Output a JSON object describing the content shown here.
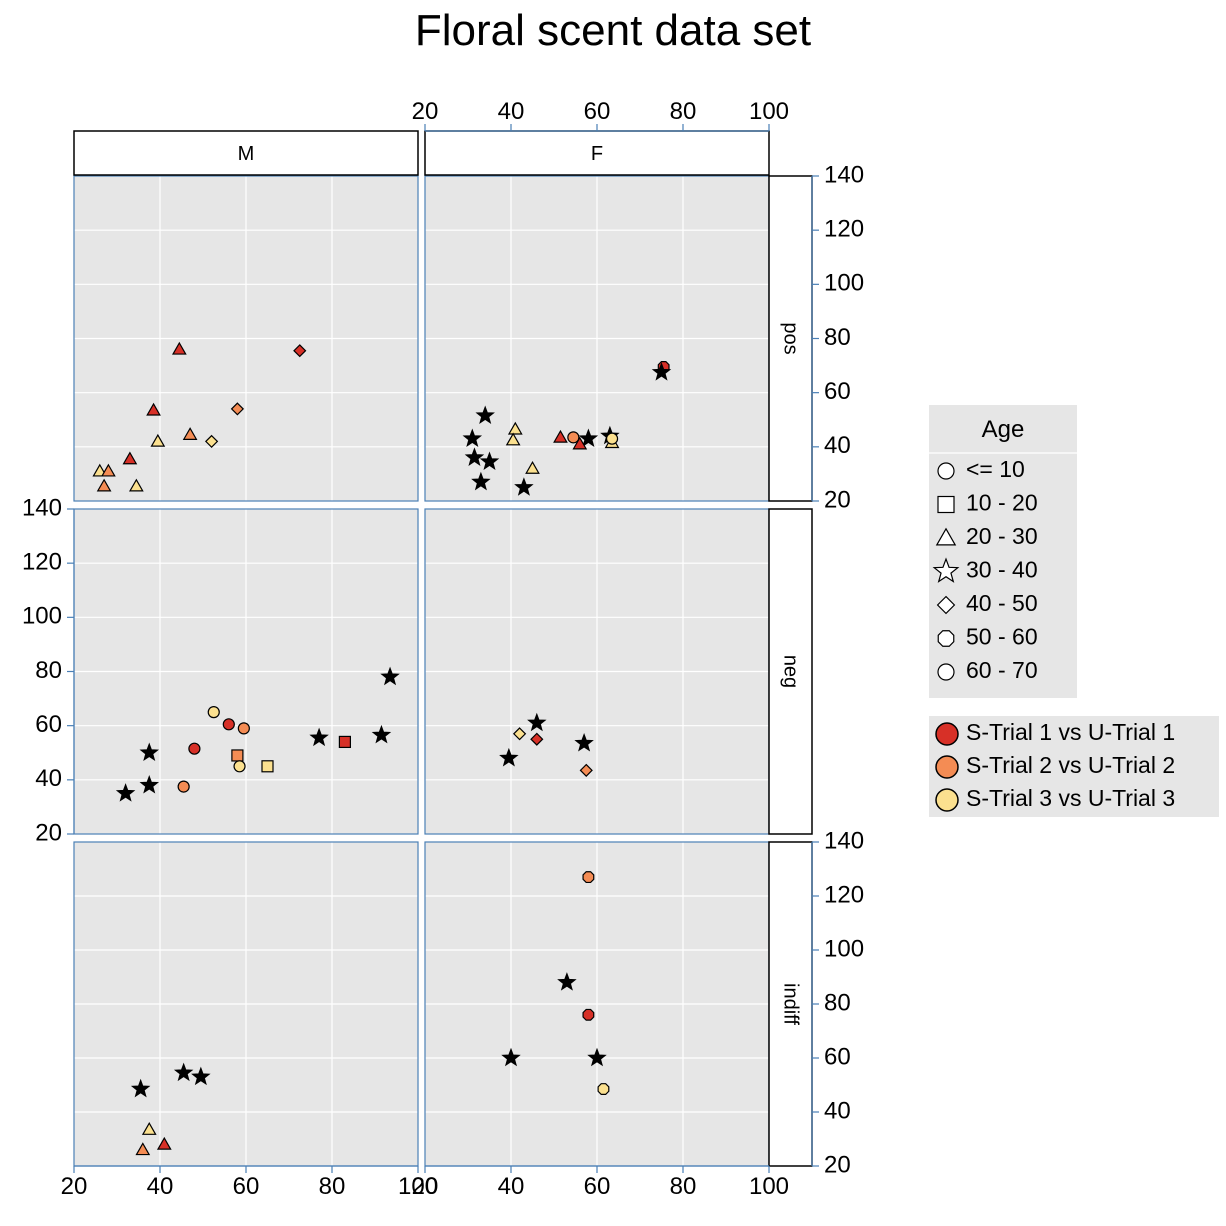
{
  "chart_data": {
    "type": "scatter",
    "title": "Floral scent data set",
    "xlim": [
      20,
      100
    ],
    "ylim": [
      20,
      140
    ],
    "x_ticks": [
      "20",
      "40",
      "60",
      "80",
      "100"
    ],
    "y_ticks": [
      "20",
      "40",
      "60",
      "80",
      "100",
      "120",
      "140"
    ],
    "columns": [
      "M",
      "F"
    ],
    "rows": [
      "pos",
      "neg",
      "indiff"
    ],
    "colors": {
      "S-Trial 1 vs U-Trial 1": "#d73027",
      "S-Trial 2 vs U-Trial 2": "#f48c54",
      "S-Trial 3 vs U-Trial 3": "#fbe08f"
    },
    "shape_legend": {
      "title": "Age",
      "items": [
        {
          "label": "<= 10",
          "shape": "circle"
        },
        {
          "label": "10 - 20",
          "shape": "square"
        },
        {
          "label": "20 - 30",
          "shape": "triangle"
        },
        {
          "label": "30 - 40",
          "shape": "star"
        },
        {
          "label": "40 - 50",
          "shape": "diamond"
        },
        {
          "label": "50 - 60",
          "shape": "octagon"
        },
        {
          "label": "60 - 70",
          "shape": "circle"
        }
      ]
    },
    "color_legend": {
      "items": [
        {
          "label": "S-Trial 1 vs U-Trial 1",
          "color": "#d73027"
        },
        {
          "label": "S-Trial 2 vs U-Trial 2",
          "color": "#f48c54"
        },
        {
          "label": "S-Trial 3 vs U-Trial 3",
          "color": "#fbe08f"
        }
      ]
    },
    "panels": [
      {
        "col": "M",
        "row": "pos",
        "points": [
          {
            "x": 44.5,
            "y": 76,
            "shape": "triangle",
            "color": "#d73027"
          },
          {
            "x": 72.5,
            "y": 75.5,
            "shape": "diamond",
            "color": "#d73027"
          },
          {
            "x": 38.5,
            "y": 53.5,
            "shape": "triangle",
            "color": "#d73027"
          },
          {
            "x": 58,
            "y": 54,
            "shape": "diamond",
            "color": "#f48c54"
          },
          {
            "x": 47,
            "y": 44.5,
            "shape": "triangle",
            "color": "#f48c54"
          },
          {
            "x": 39.5,
            "y": 42,
            "shape": "triangle",
            "color": "#fbe08f"
          },
          {
            "x": 52,
            "y": 42,
            "shape": "diamond",
            "color": "#fbe08f"
          },
          {
            "x": 33,
            "y": 35.5,
            "shape": "triangle",
            "color": "#d73027"
          },
          {
            "x": 26,
            "y": 31,
            "shape": "triangle",
            "color": "#fbe08f"
          },
          {
            "x": 28,
            "y": 31,
            "shape": "triangle",
            "color": "#f48c54"
          },
          {
            "x": 27,
            "y": 25.5,
            "shape": "triangle",
            "color": "#f48c54"
          },
          {
            "x": 34.5,
            "y": 25.5,
            "shape": "triangle",
            "color": "#fbe08f"
          }
        ]
      },
      {
        "col": "F",
        "row": "pos",
        "points": [
          {
            "x": 75.5,
            "y": 69.5,
            "shape": "octagon",
            "color": "#d73027"
          },
          {
            "x": 75,
            "y": 67.5,
            "shape": "star",
            "color": "#000000"
          },
          {
            "x": 34,
            "y": 51.5,
            "shape": "star",
            "color": "#000000"
          },
          {
            "x": 41,
            "y": 46.5,
            "shape": "triangle",
            "color": "#fbe08f"
          },
          {
            "x": 31,
            "y": 43,
            "shape": "star",
            "color": "#000000"
          },
          {
            "x": 40.5,
            "y": 42.5,
            "shape": "triangle",
            "color": "#fbe08f"
          },
          {
            "x": 51.5,
            "y": 43.5,
            "shape": "triangle",
            "color": "#d73027"
          },
          {
            "x": 54.5,
            "y": 43.5,
            "shape": "circle",
            "color": "#f48c54"
          },
          {
            "x": 58,
            "y": 43,
            "shape": "star",
            "color": "#000000"
          },
          {
            "x": 56,
            "y": 41,
            "shape": "triangle",
            "color": "#d73027"
          },
          {
            "x": 63,
            "y": 44,
            "shape": "star",
            "color": "#000000"
          },
          {
            "x": 63.5,
            "y": 41.5,
            "shape": "triangle",
            "color": "#fbe08f"
          },
          {
            "x": 63.5,
            "y": 43,
            "shape": "circle",
            "color": "#fbe08f"
          },
          {
            "x": 31.5,
            "y": 36,
            "shape": "star",
            "color": "#000000"
          },
          {
            "x": 35,
            "y": 34.5,
            "shape": "star",
            "color": "#000000"
          },
          {
            "x": 45,
            "y": 32,
            "shape": "triangle",
            "color": "#fbe08f"
          },
          {
            "x": 33,
            "y": 27,
            "shape": "star",
            "color": "#000000"
          },
          {
            "x": 43,
            "y": 25,
            "shape": "star",
            "color": "#000000"
          }
        ]
      },
      {
        "col": "M",
        "row": "neg",
        "points": [
          {
            "x": 93.5,
            "y": 78,
            "shape": "star",
            "color": "#000000"
          },
          {
            "x": 52.5,
            "y": 65,
            "shape": "circle",
            "color": "#fbe08f"
          },
          {
            "x": 56,
            "y": 60.5,
            "shape": "circle",
            "color": "#d73027"
          },
          {
            "x": 59.5,
            "y": 59,
            "shape": "circle",
            "color": "#f48c54"
          },
          {
            "x": 48,
            "y": 51.5,
            "shape": "circle",
            "color": "#d73027"
          },
          {
            "x": 37.5,
            "y": 50,
            "shape": "star",
            "color": "#000000"
          },
          {
            "x": 77,
            "y": 55.5,
            "shape": "star",
            "color": "#000000"
          },
          {
            "x": 83,
            "y": 54,
            "shape": "square",
            "color": "#d73027"
          },
          {
            "x": 91.5,
            "y": 56.5,
            "shape": "star",
            "color": "#000000"
          },
          {
            "x": 58,
            "y": 49,
            "shape": "square",
            "color": "#f48c54"
          },
          {
            "x": 58.5,
            "y": 45,
            "shape": "circle",
            "color": "#fbe08f"
          },
          {
            "x": 65,
            "y": 45,
            "shape": "square",
            "color": "#fbe08f"
          },
          {
            "x": 45.5,
            "y": 37.5,
            "shape": "circle",
            "color": "#f48c54"
          },
          {
            "x": 37.5,
            "y": 38,
            "shape": "star",
            "color": "#000000"
          },
          {
            "x": 32,
            "y": 35,
            "shape": "star",
            "color": "#000000"
          }
        ]
      },
      {
        "col": "F",
        "row": "neg",
        "points": [
          {
            "x": 46,
            "y": 61,
            "shape": "star",
            "color": "#000000"
          },
          {
            "x": 42,
            "y": 57,
            "shape": "diamond",
            "color": "#fbe08f"
          },
          {
            "x": 46,
            "y": 55,
            "shape": "diamond",
            "color": "#d73027"
          },
          {
            "x": 57,
            "y": 53.5,
            "shape": "star",
            "color": "#000000"
          },
          {
            "x": 39.5,
            "y": 48,
            "shape": "star",
            "color": "#000000"
          },
          {
            "x": 57.5,
            "y": 43.5,
            "shape": "diamond",
            "color": "#f48c54"
          }
        ]
      },
      {
        "col": "M",
        "row": "indiff",
        "points": [
          {
            "x": 45.5,
            "y": 54.5,
            "shape": "star",
            "color": "#000000"
          },
          {
            "x": 49.5,
            "y": 53,
            "shape": "star",
            "color": "#000000"
          },
          {
            "x": 35.5,
            "y": 48.5,
            "shape": "star",
            "color": "#000000"
          },
          {
            "x": 37.5,
            "y": 33.5,
            "shape": "triangle",
            "color": "#fbe08f"
          },
          {
            "x": 41,
            "y": 28,
            "shape": "triangle",
            "color": "#d73027"
          },
          {
            "x": 36,
            "y": 26,
            "shape": "triangle",
            "color": "#f48c54"
          }
        ]
      },
      {
        "col": "F",
        "row": "indiff",
        "points": [
          {
            "x": 58,
            "y": 127,
            "shape": "octagon",
            "color": "#f48c54"
          },
          {
            "x": 53,
            "y": 88,
            "shape": "star",
            "color": "#000000"
          },
          {
            "x": 58,
            "y": 76,
            "shape": "octagon",
            "color": "#d73027"
          },
          {
            "x": 40,
            "y": 60,
            "shape": "star",
            "color": "#000000"
          },
          {
            "x": 60,
            "y": 60,
            "shape": "star",
            "color": "#000000"
          },
          {
            "x": 61.5,
            "y": 48.5,
            "shape": "octagon",
            "color": "#fbe08f"
          }
        ]
      }
    ]
  }
}
